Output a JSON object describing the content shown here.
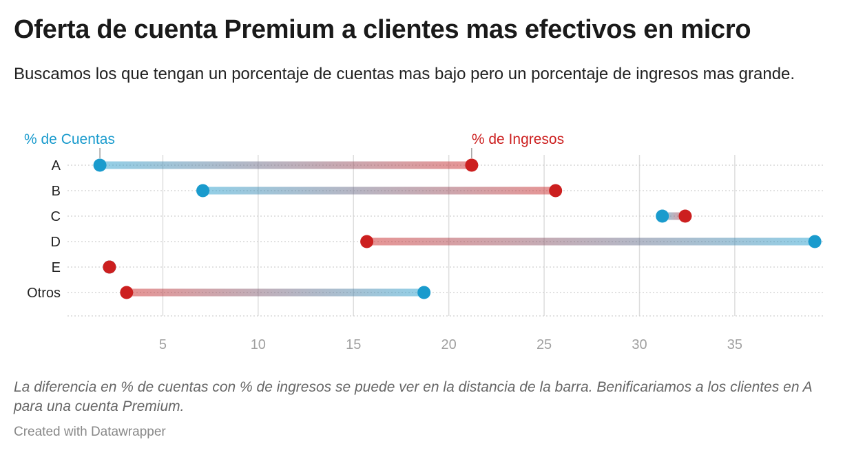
{
  "header": {
    "title": "Oferta de cuenta Premium a clientes mas efectivos en micro",
    "subtitle": "Buscamos los que tengan un porcentaje de cuentas mas bajo pero un porcentaje de ingresos mas grande."
  },
  "footer": {
    "notes": "La diferencia en % de cuentas con % de ingresos se puede ver en la distancia de la barra. Benificariamos a los clientes en A para una cuenta Premium.",
    "credit": "Created with Datawrapper"
  },
  "colors": {
    "cuentas": "#1a9bcd",
    "ingresos": "#cc1f1f",
    "grid": "#dddddd"
  },
  "chart_data": {
    "type": "range-plot",
    "categories": [
      "A",
      "B",
      "C",
      "D",
      "E",
      "Otros"
    ],
    "series": [
      {
        "name": "% de Cuentas",
        "values": [
          1.7,
          7.1,
          31.2,
          39.2,
          2.2,
          18.7
        ]
      },
      {
        "name": "% de Ingresos",
        "values": [
          21.2,
          25.6,
          32.4,
          15.7,
          2.2,
          3.1
        ]
      }
    ],
    "xlim": [
      0,
      39.7
    ],
    "xticks": [
      5,
      10,
      15,
      20,
      25,
      30,
      35
    ],
    "grid": "vertical",
    "legend": "inline-labels-top"
  }
}
